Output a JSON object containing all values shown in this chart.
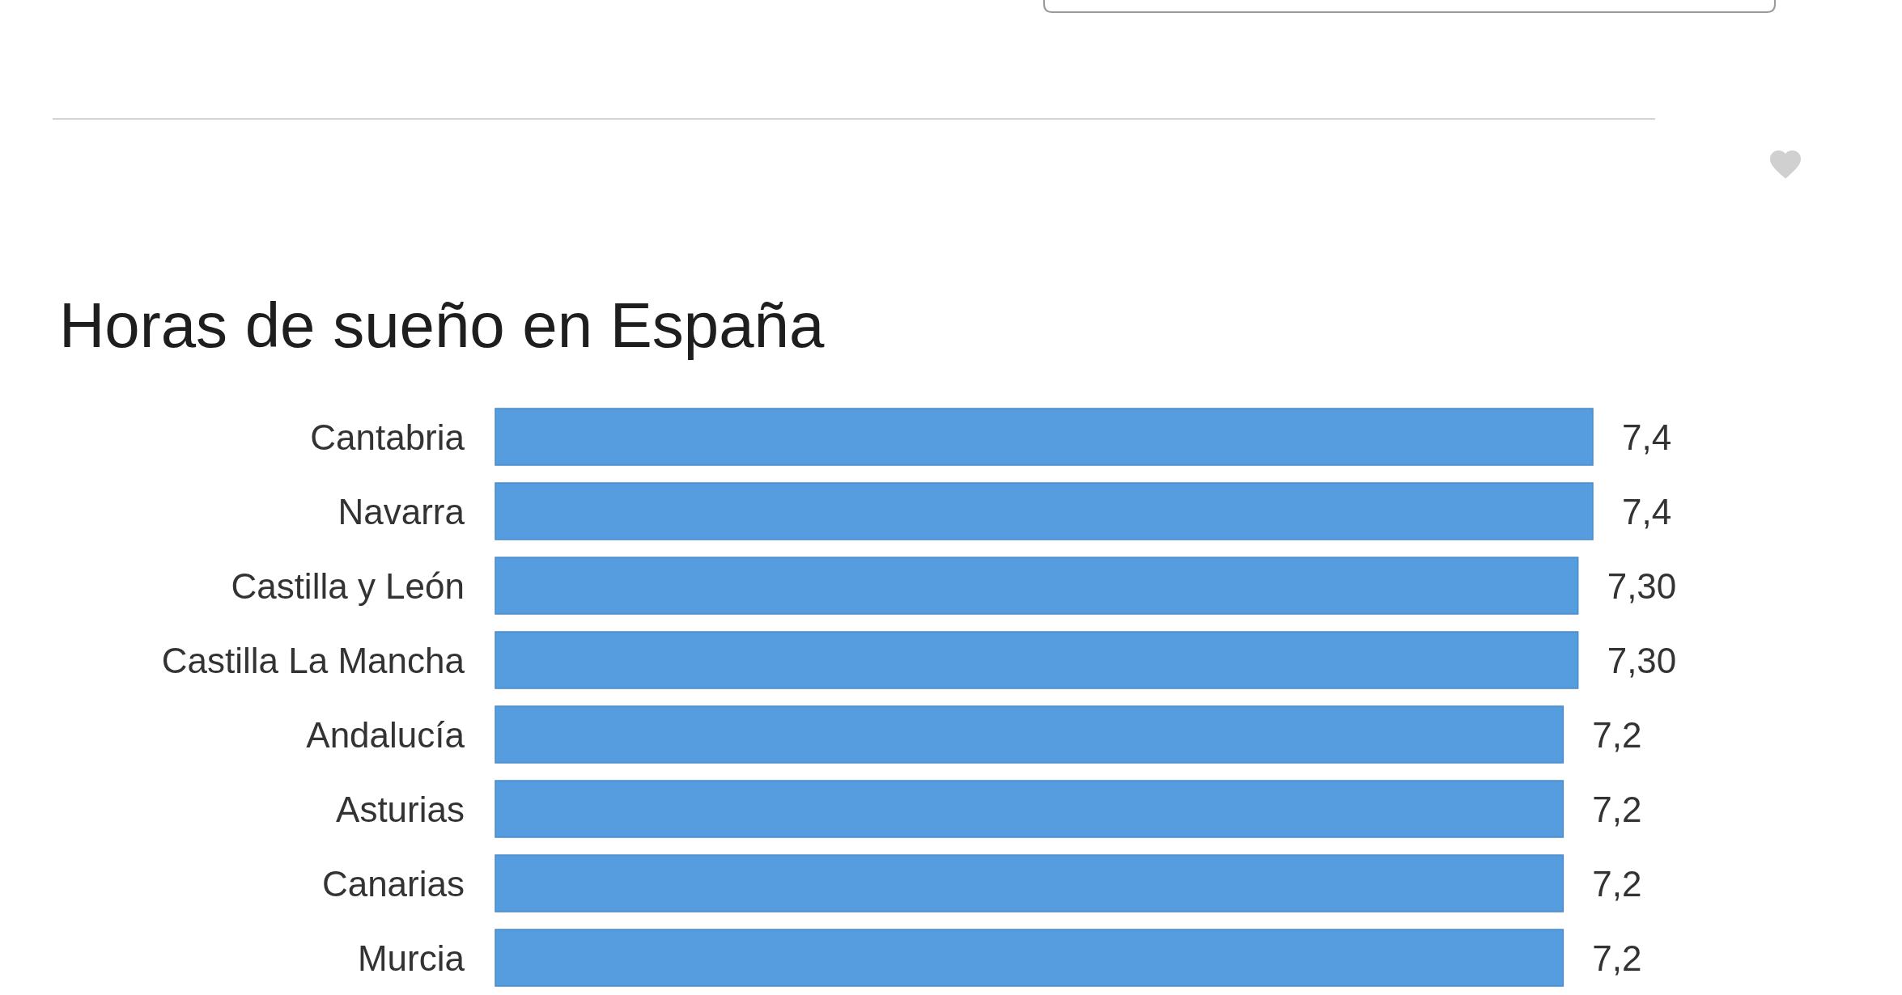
{
  "chart_data": {
    "type": "bar",
    "orientation": "horizontal",
    "title": "Horas de sueño en España",
    "categories": [
      "Cantabria",
      "Navarra",
      "Castilla y León",
      "Castilla La Mancha",
      "Andalucía",
      "Asturias",
      "Canarias",
      "Murcia"
    ],
    "values": [
      7.4,
      7.4,
      7.3,
      7.3,
      7.2,
      7.2,
      7.2,
      7.2
    ],
    "value_labels": [
      "7,4",
      "7,4",
      "7,30",
      "7,30",
      "7,2",
      "7,2",
      "7,2",
      "7,2"
    ],
    "color": "#569de0"
  }
}
